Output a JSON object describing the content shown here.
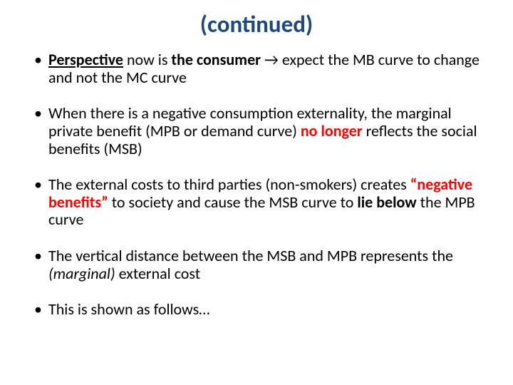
{
  "title": "(continued)",
  "title_color": "#1f497d",
  "title_fontsize": 33,
  "body_fontsize": 22,
  "bullet_color": "#000000",
  "red_color": "#ff0000",
  "background_color": "#ffffff",
  "bullets": {
    "b1": {
      "t1": "Perspective",
      "t2": " now is ",
      "t3": "the consumer ",
      "arrow": "→",
      "t4": " expect the MB curve to change and not the MC curve"
    },
    "b2": {
      "t1": "When there is a negative consumption externality, the marginal private benefit (MPB or demand curve)  ",
      "t2": "no longer",
      "t3": " reflects the social benefits (MSB)"
    },
    "b3": {
      "t1": "The external costs to third parties (non-smokers) creates ",
      "t2": "“negative benefits”",
      "t3": " to society and cause the MSB curve to ",
      "t4": "lie below",
      "t5": " the MPB curve"
    },
    "b4": {
      "t1": "The vertical distance between the MSB and MPB represents the ",
      "t2": "(marginal)",
      "t3": " external cost"
    },
    "b5": {
      "t1": "This is shown as follows…"
    }
  }
}
